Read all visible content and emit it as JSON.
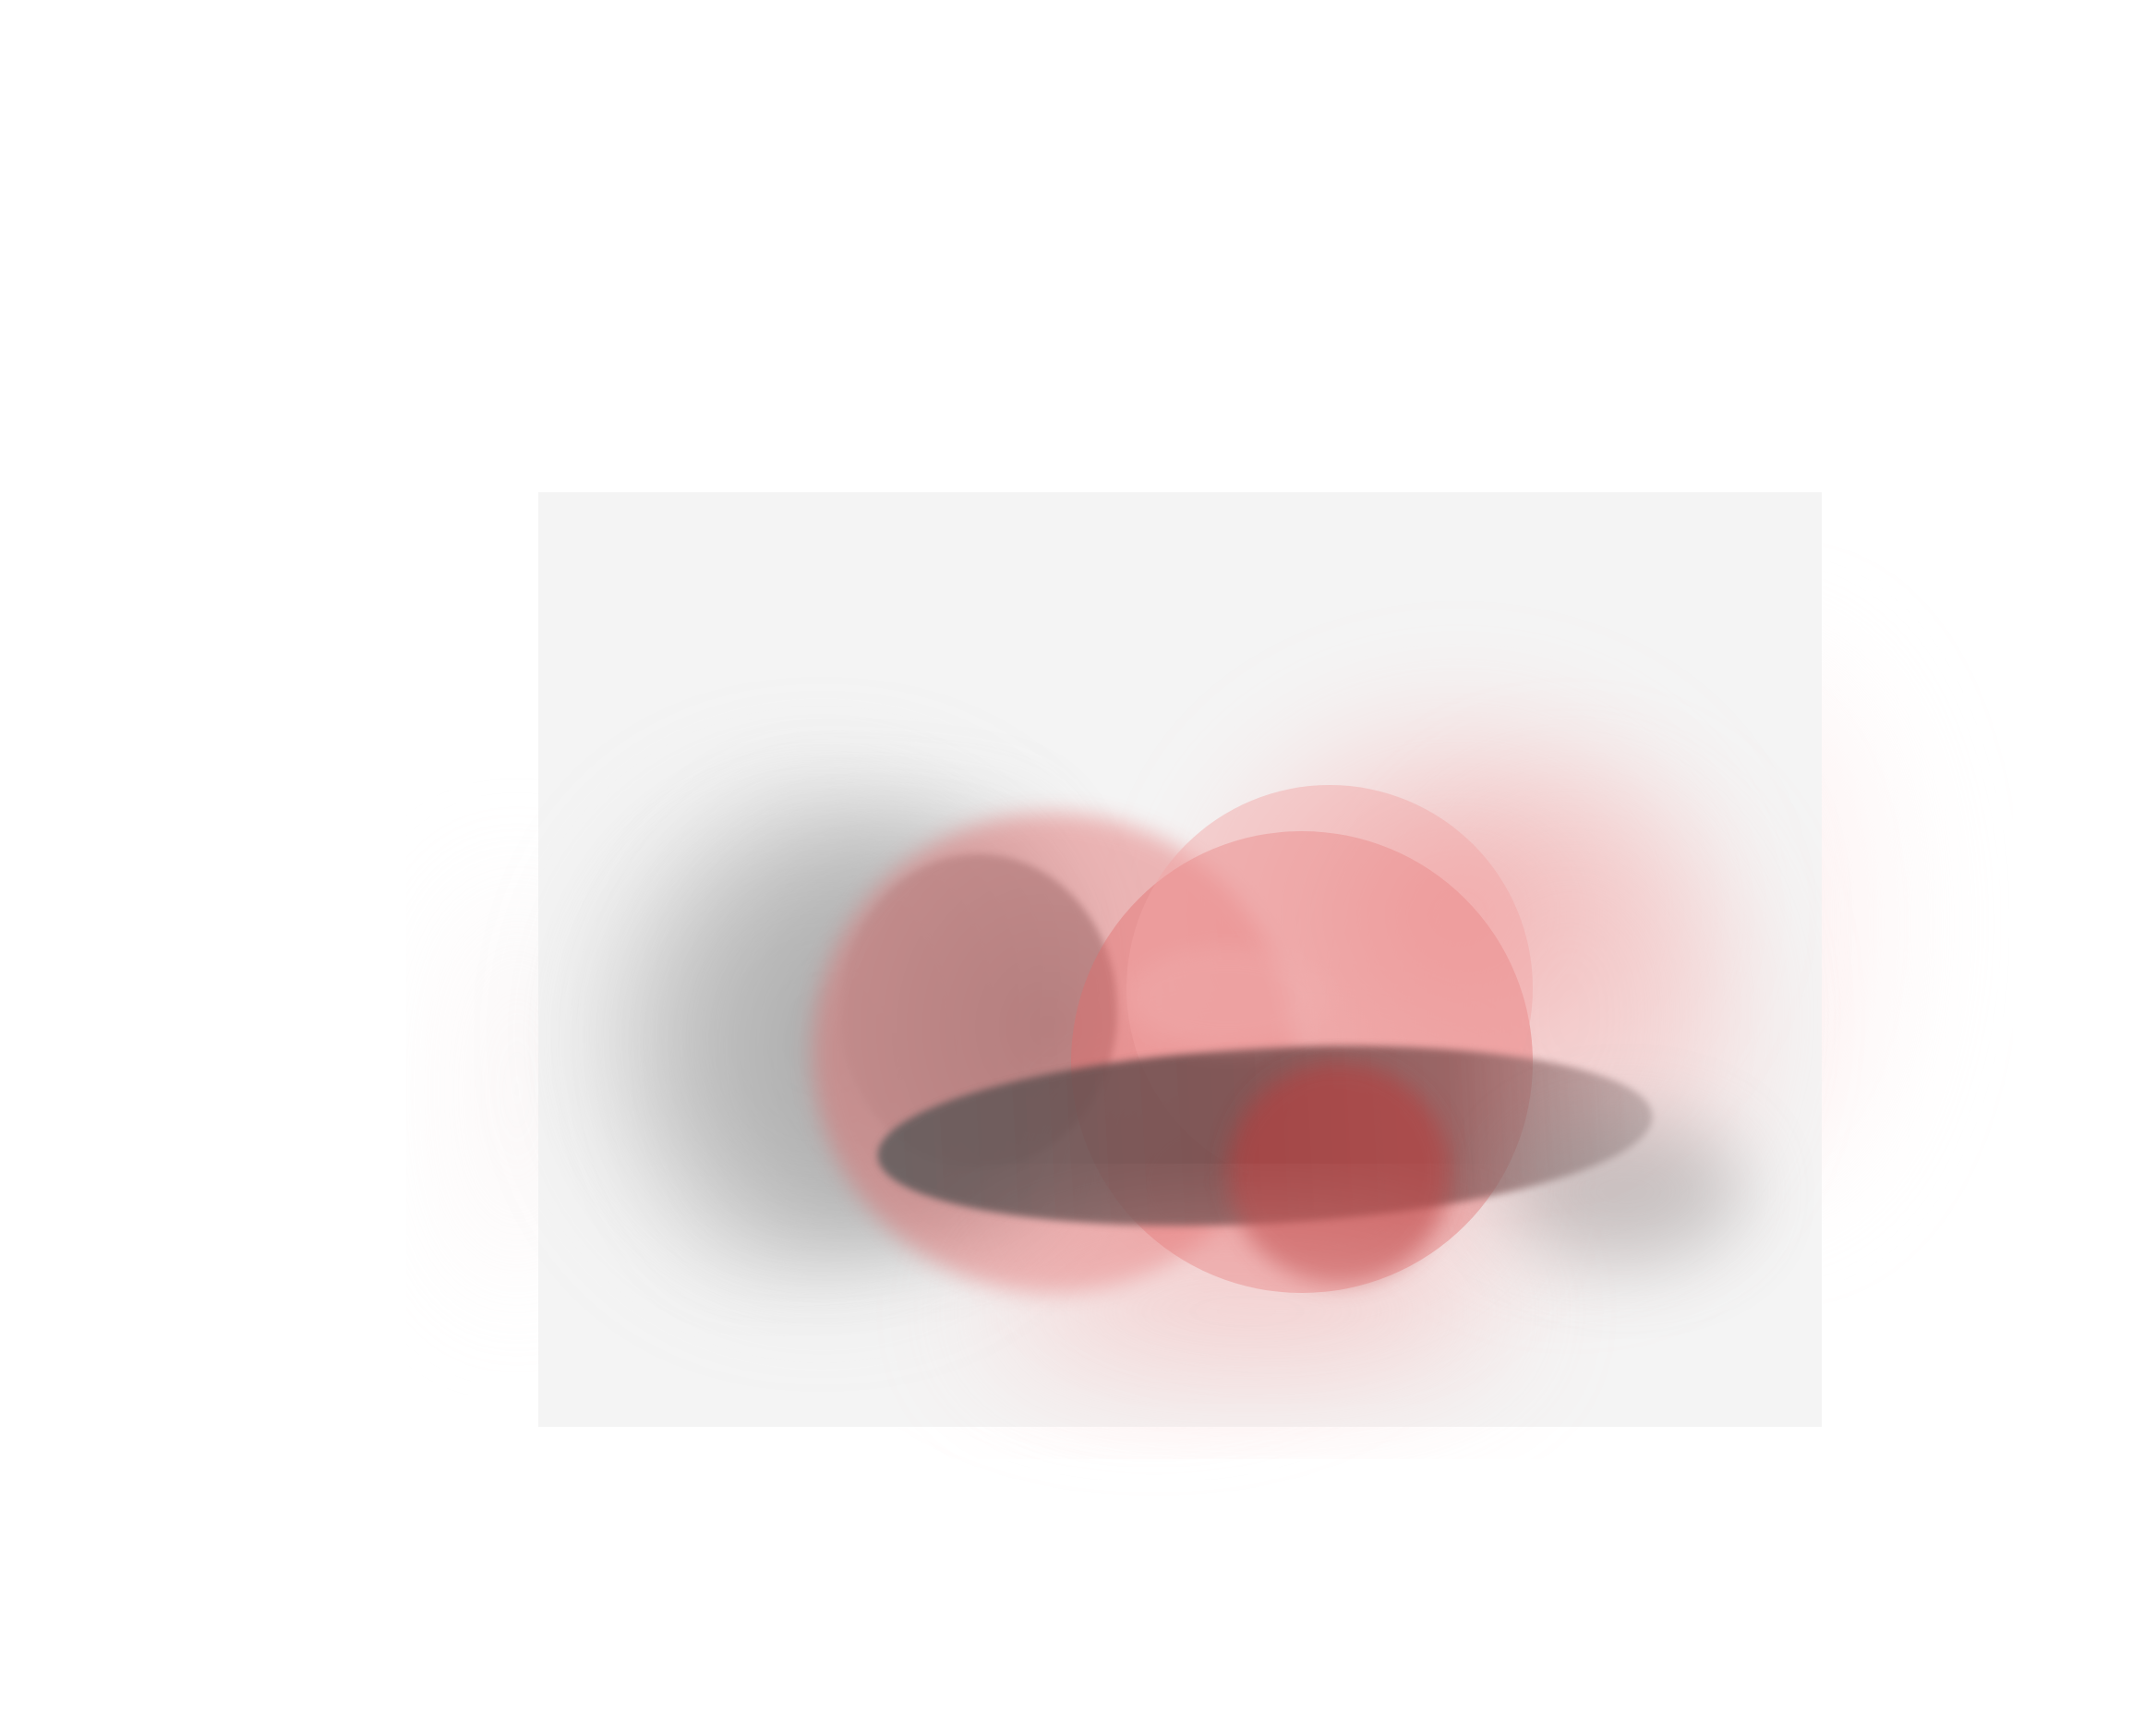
{
  "artwork": {
    "subject": "abstract-composition",
    "colors": {
      "page_background": "#ffffff",
      "panel_background": "#f4f4f4",
      "gray_dark": "#4a4a4a",
      "gray_mid": "#9a9a9a",
      "red_deep": "#b33a3a",
      "red_mid": "#e06a6a",
      "red_light": "#f0a8a8"
    }
  }
}
